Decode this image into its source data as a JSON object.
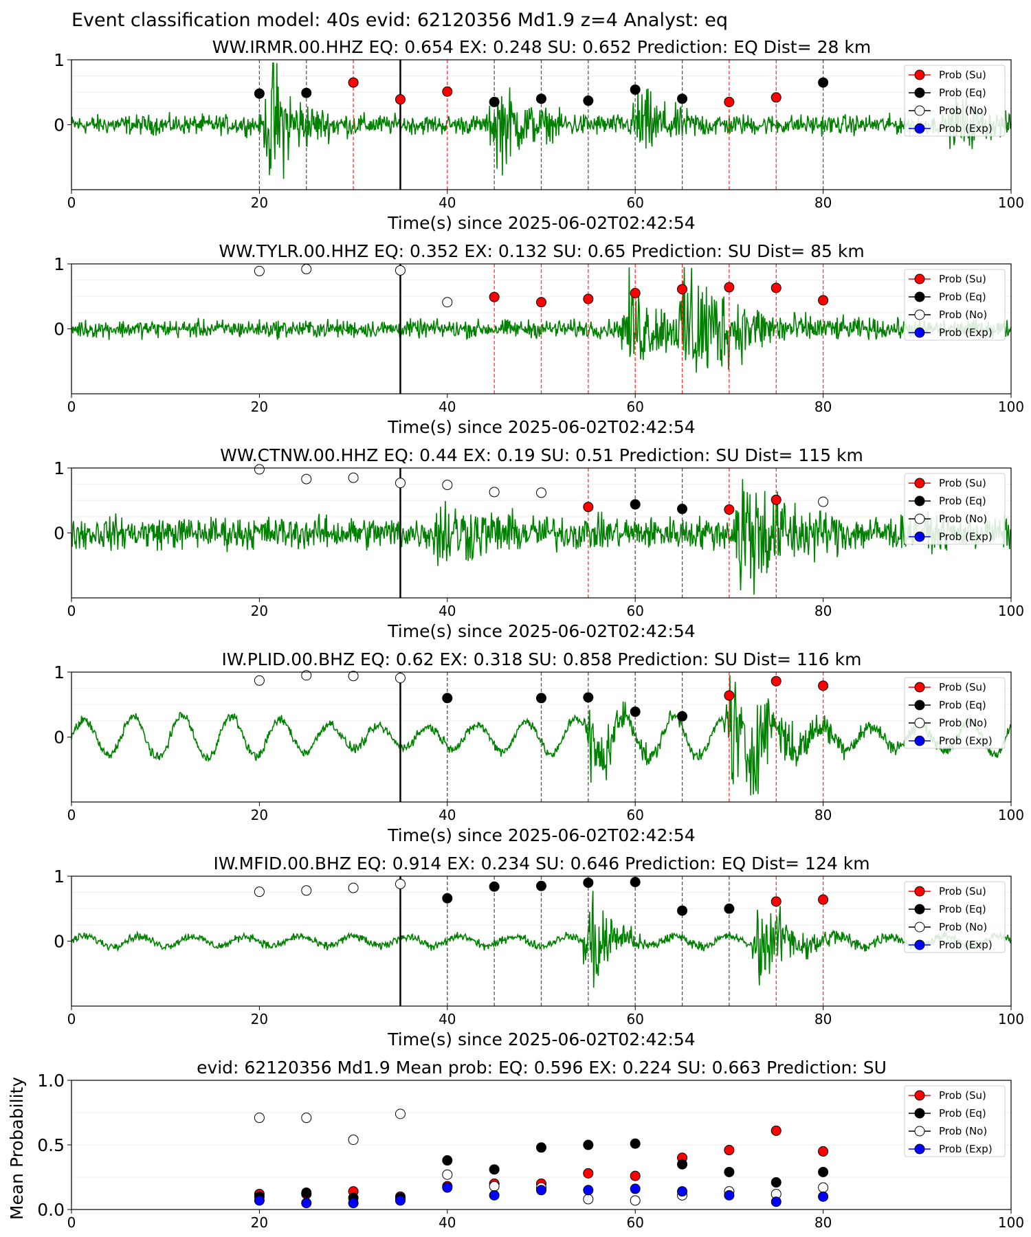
{
  "figure_title": "Event classification model: 40s evid: 62120356 Md1.9 z=4 Analyst: eq",
  "colors": {
    "trace": "#008000",
    "su": "#ff0000",
    "eq": "#000000",
    "no": "#ffffff",
    "exp": "#0000ff",
    "eq_line": "#555555",
    "su_line": "#ff3333",
    "origin_line": "#000000"
  },
  "legend": [
    "Prob (Su)",
    "Prob (Eq)",
    "Prob (No)",
    "Prob (Exp)"
  ],
  "chart_data": [
    {
      "type": "line",
      "title": "WW.IRMR.00.HHZ   EQ: 0.654  EX: 0.248  SU: 0.652   Prediction: EQ    Dist= 28 km",
      "xlabel": "Time(s) since 2025-06-02T02:42:54",
      "ylabel": "",
      "xlim": [
        0,
        100
      ],
      "ylim": [
        -1,
        1
      ],
      "xticks": [
        "0",
        "20",
        "40",
        "60",
        "80",
        "100"
      ],
      "yticks": [
        "0",
        "1"
      ],
      "origin_time": 35,
      "waveform": {
        "style": "impulsive",
        "bursts": [
          [
            21,
            0.9,
            2.5
          ],
          [
            45,
            0.55,
            3
          ],
          [
            60,
            0.45,
            3
          ],
          [
            94,
            0.4,
            2
          ]
        ],
        "noise": 0.12
      },
      "points": [
        {
          "x": 20,
          "y": 0.48,
          "cls": "eq"
        },
        {
          "x": 25,
          "y": 0.49,
          "cls": "eq"
        },
        {
          "x": 30,
          "y": 0.65,
          "cls": "su"
        },
        {
          "x": 35,
          "y": 0.39,
          "cls": "su"
        },
        {
          "x": 40,
          "y": 0.51,
          "cls": "su"
        },
        {
          "x": 45,
          "y": 0.35,
          "cls": "eq"
        },
        {
          "x": 50,
          "y": 0.4,
          "cls": "eq"
        },
        {
          "x": 55,
          "y": 0.37,
          "cls": "eq"
        },
        {
          "x": 60,
          "y": 0.54,
          "cls": "eq"
        },
        {
          "x": 65,
          "y": 0.4,
          "cls": "eq"
        },
        {
          "x": 70,
          "y": 0.35,
          "cls": "su"
        },
        {
          "x": 75,
          "y": 0.42,
          "cls": "su"
        },
        {
          "x": 80,
          "y": 0.65,
          "cls": "eq"
        }
      ]
    },
    {
      "type": "line",
      "title": "WW.TYLR.00.HHZ   EQ: 0.352  EX: 0.132  SU: 0.65   Prediction: SU    Dist= 85 km",
      "xlabel": "Time(s) since 2025-06-02T02:42:54",
      "ylabel": "",
      "xlim": [
        0,
        100
      ],
      "ylim": [
        -1,
        1
      ],
      "xticks": [
        "0",
        "20",
        "40",
        "60",
        "80",
        "100"
      ],
      "yticks": [
        "0",
        "1"
      ],
      "origin_time": 35,
      "waveform": {
        "style": "impulsive",
        "bursts": [
          [
            59,
            0.55,
            4
          ],
          [
            65,
            0.85,
            5
          ]
        ],
        "noise": 0.11
      },
      "points": [
        {
          "x": 20,
          "y": 0.89,
          "cls": "no"
        },
        {
          "x": 25,
          "y": 0.92,
          "cls": "no"
        },
        {
          "x": 35,
          "y": 0.9,
          "cls": "no"
        },
        {
          "x": 40,
          "y": 0.41,
          "cls": "no"
        },
        {
          "x": 45,
          "y": 0.49,
          "cls": "su"
        },
        {
          "x": 50,
          "y": 0.41,
          "cls": "su"
        },
        {
          "x": 55,
          "y": 0.46,
          "cls": "su"
        },
        {
          "x": 60,
          "y": 0.55,
          "cls": "su"
        },
        {
          "x": 65,
          "y": 0.61,
          "cls": "su"
        },
        {
          "x": 70,
          "y": 0.64,
          "cls": "su"
        },
        {
          "x": 75,
          "y": 0.63,
          "cls": "su"
        },
        {
          "x": 80,
          "y": 0.44,
          "cls": "su"
        }
      ]
    },
    {
      "type": "line",
      "title": "WW.CTNW.00.HHZ   EQ: 0.44  EX: 0.19  SU: 0.51   Prediction: SU    Dist= 115 km",
      "xlabel": "Time(s) since 2025-06-02T02:42:54",
      "ylabel": "",
      "xlim": [
        0,
        100
      ],
      "ylim": [
        -1,
        1
      ],
      "xticks": [
        "0",
        "20",
        "40",
        "60",
        "80",
        "100"
      ],
      "yticks": [
        "0",
        "1"
      ],
      "origin_time": 35,
      "waveform": {
        "style": "impulsive",
        "bursts": [
          [
            39,
            0.35,
            4
          ],
          [
            71,
            0.9,
            4
          ]
        ],
        "noise": 0.2
      },
      "points": [
        {
          "x": 20,
          "y": 0.98,
          "cls": "no"
        },
        {
          "x": 25,
          "y": 0.83,
          "cls": "no"
        },
        {
          "x": 30,
          "y": 0.85,
          "cls": "no"
        },
        {
          "x": 35,
          "y": 0.77,
          "cls": "no"
        },
        {
          "x": 40,
          "y": 0.74,
          "cls": "no"
        },
        {
          "x": 45,
          "y": 0.63,
          "cls": "no"
        },
        {
          "x": 50,
          "y": 0.62,
          "cls": "no"
        },
        {
          "x": 55,
          "y": 0.4,
          "cls": "su"
        },
        {
          "x": 60,
          "y": 0.44,
          "cls": "eq"
        },
        {
          "x": 65,
          "y": 0.37,
          "cls": "eq"
        },
        {
          "x": 70,
          "y": 0.36,
          "cls": "su"
        },
        {
          "x": 75,
          "y": 0.51,
          "cls": "su"
        },
        {
          "x": 80,
          "y": 0.48,
          "cls": "no"
        }
      ]
    },
    {
      "type": "line",
      "title": "IW.PLID.00.BHZ   EQ: 0.62  EX: 0.318  SU: 0.858   Prediction: SU    Dist= 116 km",
      "xlabel": "Time(s) since 2025-06-02T02:42:54",
      "ylabel": "",
      "xlim": [
        0,
        100
      ],
      "ylim": [
        -1,
        1
      ],
      "xticks": [
        "0",
        "20",
        "40",
        "60",
        "80",
        "100"
      ],
      "yticks": [
        "0",
        "1"
      ],
      "origin_time": 35,
      "waveform": {
        "style": "microseism",
        "bursts": [
          [
            55,
            0.5,
            3
          ],
          [
            70,
            0.85,
            5
          ]
        ],
        "noise": 0.06
      },
      "points": [
        {
          "x": 20,
          "y": 0.87,
          "cls": "no"
        },
        {
          "x": 25,
          "y": 0.95,
          "cls": "no"
        },
        {
          "x": 30,
          "y": 0.94,
          "cls": "no"
        },
        {
          "x": 35,
          "y": 0.91,
          "cls": "no"
        },
        {
          "x": 40,
          "y": 0.6,
          "cls": "eq"
        },
        {
          "x": 50,
          "y": 0.6,
          "cls": "eq"
        },
        {
          "x": 55,
          "y": 0.61,
          "cls": "eq"
        },
        {
          "x": 60,
          "y": 0.39,
          "cls": "eq"
        },
        {
          "x": 65,
          "y": 0.32,
          "cls": "eq"
        },
        {
          "x": 70,
          "y": 0.64,
          "cls": "su"
        },
        {
          "x": 75,
          "y": 0.86,
          "cls": "su"
        },
        {
          "x": 80,
          "y": 0.79,
          "cls": "su"
        }
      ]
    },
    {
      "type": "line",
      "title": "IW.MFID.00.BHZ   EQ: 0.914  EX: 0.234  SU: 0.646   Prediction: EQ    Dist= 124 km",
      "xlabel": "Time(s) since 2025-06-02T02:42:54",
      "ylabel": "",
      "xlim": [
        0,
        100
      ],
      "ylim": [
        -1,
        1
      ],
      "xticks": [
        "0",
        "20",
        "40",
        "60",
        "80",
        "100"
      ],
      "yticks": [
        "0",
        "1"
      ],
      "origin_time": 35,
      "waveform": {
        "style": "quiet",
        "bursts": [
          [
            55,
            0.9,
            2
          ],
          [
            73,
            0.5,
            4
          ]
        ],
        "noise": 0.05
      },
      "points": [
        {
          "x": 20,
          "y": 0.76,
          "cls": "no"
        },
        {
          "x": 25,
          "y": 0.78,
          "cls": "no"
        },
        {
          "x": 30,
          "y": 0.82,
          "cls": "no"
        },
        {
          "x": 35,
          "y": 0.88,
          "cls": "no"
        },
        {
          "x": 40,
          "y": 0.66,
          "cls": "eq"
        },
        {
          "x": 45,
          "y": 0.84,
          "cls": "eq"
        },
        {
          "x": 50,
          "y": 0.85,
          "cls": "eq"
        },
        {
          "x": 55,
          "y": 0.9,
          "cls": "eq"
        },
        {
          "x": 60,
          "y": 0.91,
          "cls": "eq"
        },
        {
          "x": 65,
          "y": 0.47,
          "cls": "eq"
        },
        {
          "x": 70,
          "y": 0.5,
          "cls": "eq"
        },
        {
          "x": 75,
          "y": 0.61,
          "cls": "su"
        },
        {
          "x": 80,
          "y": 0.64,
          "cls": "su"
        }
      ]
    },
    {
      "type": "scatter",
      "title": "evid: 62120356  Md1.9   Mean prob:   EQ: 0.596  EX: 0.224  SU: 0.663   Prediction: SU",
      "xlabel": "",
      "ylabel": "Mean Probability",
      "xlim": [
        0,
        100
      ],
      "ylim": [
        0,
        1
      ],
      "xticks": [
        "0",
        "20",
        "40",
        "60",
        "80",
        "100"
      ],
      "yticks": [
        "0.0",
        "0.5",
        "1.0"
      ],
      "x": [
        20,
        25,
        30,
        35,
        40,
        45,
        50,
        55,
        60,
        65,
        70,
        75,
        80
      ],
      "series": [
        {
          "name": "Prob (Su)",
          "cls": "su",
          "values": [
            0.12,
            0.12,
            0.14,
            0.1,
            0.18,
            0.2,
            0.2,
            0.28,
            0.26,
            0.4,
            0.46,
            0.61,
            0.45
          ]
        },
        {
          "name": "Prob (Eq)",
          "cls": "eq",
          "values": [
            0.1,
            0.13,
            0.09,
            0.09,
            0.38,
            0.31,
            0.48,
            0.5,
            0.51,
            0.35,
            0.29,
            0.21,
            0.29
          ]
        },
        {
          "name": "Prob (No)",
          "cls": "no",
          "values": [
            0.71,
            0.71,
            0.54,
            0.74,
            0.27,
            0.18,
            0.17,
            0.08,
            0.07,
            0.11,
            0.14,
            0.12,
            0.17
          ]
        },
        {
          "name": "Prob (Exp)",
          "cls": "exp",
          "values": [
            0.07,
            0.05,
            0.05,
            0.07,
            0.17,
            0.11,
            0.15,
            0.15,
            0.16,
            0.14,
            0.11,
            0.06,
            0.1
          ]
        }
      ]
    }
  ]
}
